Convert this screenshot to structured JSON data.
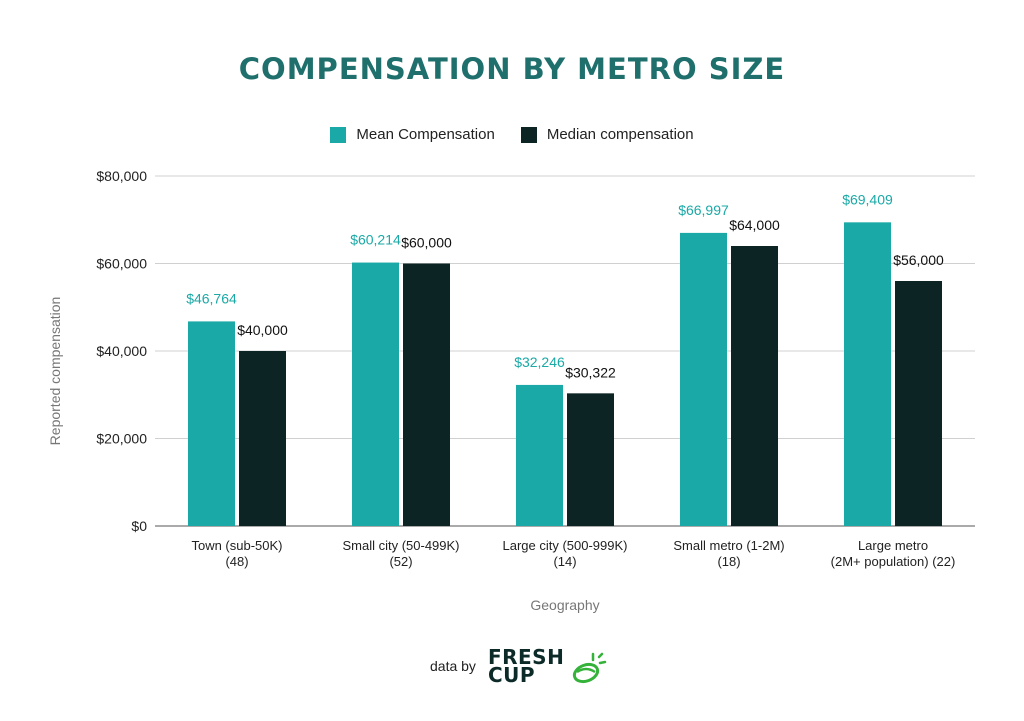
{
  "chart_data": {
    "type": "bar",
    "title": "COMPENSATION BY METRO SIZE",
    "xlabel": "Geography",
    "ylabel": "Reported compensation",
    "ylim": [
      0,
      80000
    ],
    "yticks": [
      0,
      20000,
      40000,
      60000,
      80000
    ],
    "ytick_labels": [
      "$0",
      "$20,000",
      "$40,000",
      "$60,000",
      "$80,000"
    ],
    "grid": true,
    "legend_position": "top-center",
    "categories": [
      [
        "Town (sub-50K)",
        "(48)"
      ],
      [
        "Small city (50-499K)",
        "(52)"
      ],
      [
        "Large city (500-999K)",
        "(14)"
      ],
      [
        "Small metro (1-2M)",
        "(18)"
      ],
      [
        "Large metro",
        "(2M+ population) (22)"
      ]
    ],
    "series": [
      {
        "name": "Mean Compensation",
        "color": "#1aa9a6",
        "label_color": "#1aa9a6",
        "values": [
          46764,
          60214,
          32246,
          66997,
          69409
        ],
        "labels": [
          "$46,764",
          "$60,214",
          "$32,246",
          "$66,997",
          "$69,409"
        ]
      },
      {
        "name": "Median compensation",
        "color": "#0c2423",
        "label_color": "#111111",
        "values": [
          40000,
          60000,
          30322,
          64000,
          56000
        ],
        "labels": [
          "$40,000",
          "$60,000",
          "$30,322",
          "$64,000",
          "$56,000"
        ]
      }
    ]
  },
  "footer": {
    "data_by": "data by",
    "logo_line1": "FRESH",
    "logo_line2": "CUP"
  },
  "colors": {
    "title": "#1f6f6d",
    "grid": "#d0d0d0",
    "logo_accent": "#35b23a"
  }
}
